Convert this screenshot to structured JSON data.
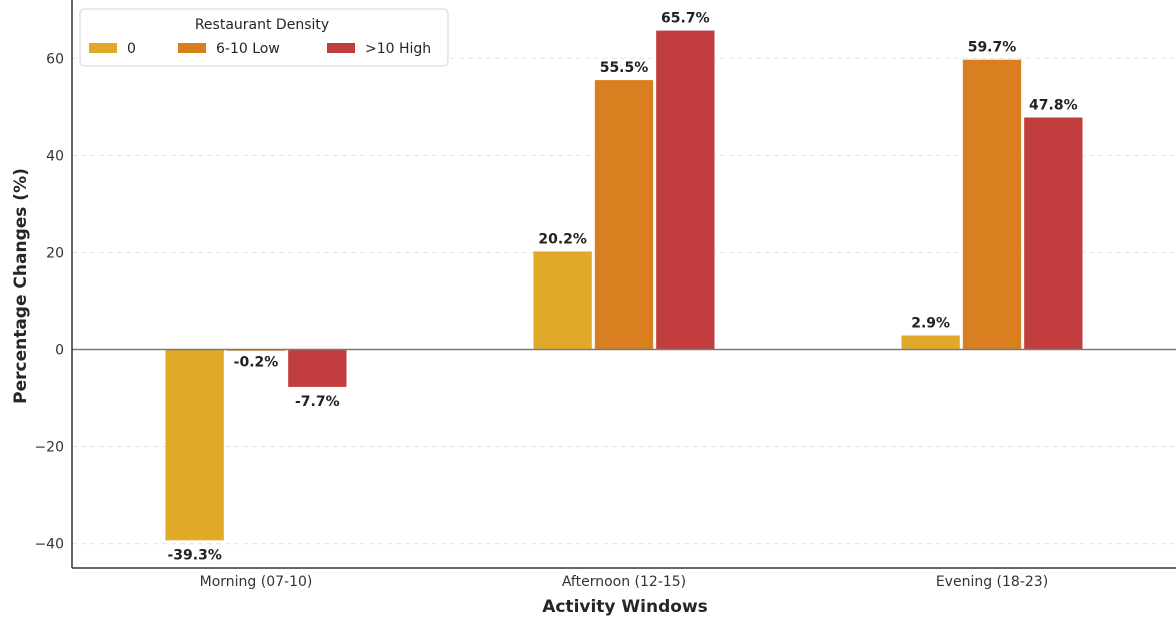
{
  "chart_data": {
    "type": "bar",
    "xlabel": "Activity Windows",
    "ylabel": "Percentage Changes (%)",
    "categories": [
      "Morning (07-10)",
      "Afternoon (12-15)",
      "Evening (18-23)"
    ],
    "ylim": [
      -45,
      72
    ],
    "yticks": [
      -40,
      -20,
      0,
      20,
      40,
      60
    ],
    "ytick_labels": [
      "−40",
      "−20",
      "0",
      "20",
      "40",
      "60"
    ],
    "grid": true,
    "legend": {
      "title": "Restaurant Density",
      "placement": "top-left",
      "columns": 3
    },
    "series": [
      {
        "name": "0",
        "color": "#e0aa28",
        "values": [
          -39.3,
          20.2,
          2.9
        ],
        "labels": [
          "-39.3%",
          "20.2%",
          "2.9%"
        ]
      },
      {
        "name": "6-10 Low",
        "color": "#d97f1f",
        "values": [
          -0.2,
          55.5,
          59.7
        ],
        "labels": [
          "-0.2%",
          "55.5%",
          "59.7%"
        ]
      },
      {
        "name": ">10 High",
        "color": "#c23d3e",
        "values": [
          -7.7,
          65.7,
          47.8
        ],
        "labels": [
          "-7.7%",
          "65.7%",
          "47.8%"
        ]
      }
    ]
  }
}
